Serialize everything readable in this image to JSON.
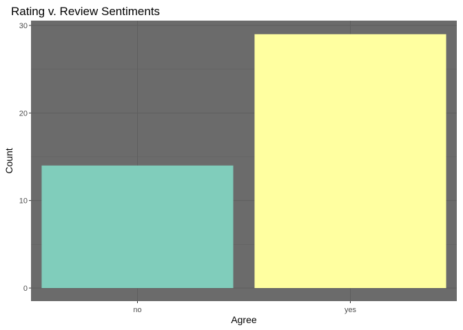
{
  "chart_data": {
    "type": "bar",
    "title": "Rating v. Review Sentiments",
    "xlabel": "Agree",
    "ylabel": "Count",
    "categories": [
      "no",
      "yes"
    ],
    "values": [
      14,
      29
    ],
    "ylim": [
      0,
      30
    ],
    "yticks": [
      0,
      10,
      20,
      30
    ],
    "ytick_labels": [
      "0",
      "10",
      "20",
      "30"
    ],
    "grid": true,
    "legend": "none",
    "colors": {
      "panel_background": "#6b6b6b",
      "bars": [
        "#80cdbb",
        "#ffffa0"
      ]
    }
  }
}
